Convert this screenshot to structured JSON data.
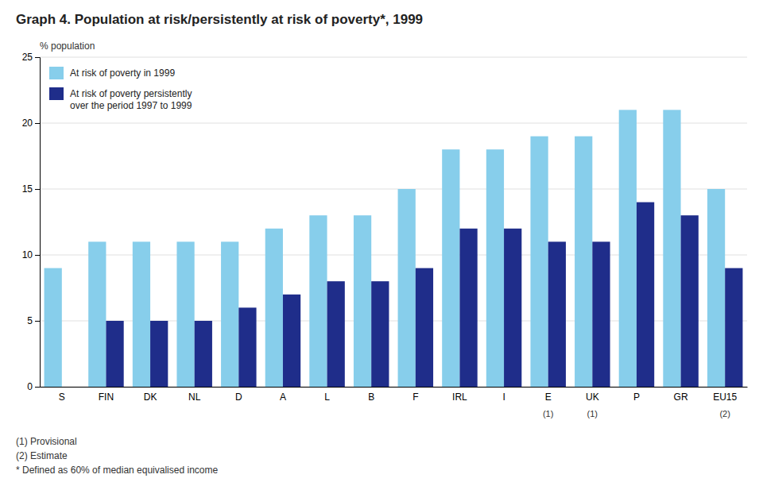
{
  "chart_data": {
    "type": "bar",
    "title": "Graph 4. Population at risk/persistently at risk of poverty*, 1999",
    "ylabel": "% population",
    "categories": [
      "S",
      "FIN",
      "DK",
      "NL",
      "D",
      "A",
      "L",
      "B",
      "F",
      "IRL",
      "I",
      "E",
      "UK",
      "P",
      "GR",
      "EU15"
    ],
    "series": [
      {
        "name": "At risk of poverty in 1999",
        "color": "#87CEEB",
        "values": [
          9,
          11,
          11,
          11,
          11,
          12,
          13,
          13,
          15,
          18,
          18,
          19,
          19,
          21,
          21,
          15
        ]
      },
      {
        "name": "At risk of poverty persistently\nover the period 1997 to 1999",
        "color": "#1F2D8A",
        "values": [
          0,
          5,
          5,
          5,
          6,
          7,
          8,
          8,
          9,
          12,
          12,
          11,
          11,
          14,
          13,
          9
        ]
      }
    ],
    "annotations": [
      {
        "x": "E",
        "text": "(1)"
      },
      {
        "x": "UK",
        "text": "(1)"
      },
      {
        "x": "EU15",
        "text": "(2)"
      }
    ],
    "footnotes": [
      "(1) Provisional",
      "(2) Estimate",
      "* Defined as 60% of median equivalised income"
    ],
    "ylim": [
      0,
      25
    ],
    "yticks": [
      0,
      5,
      10,
      15,
      20,
      25
    ],
    "grid": true,
    "legend": "upper left"
  }
}
